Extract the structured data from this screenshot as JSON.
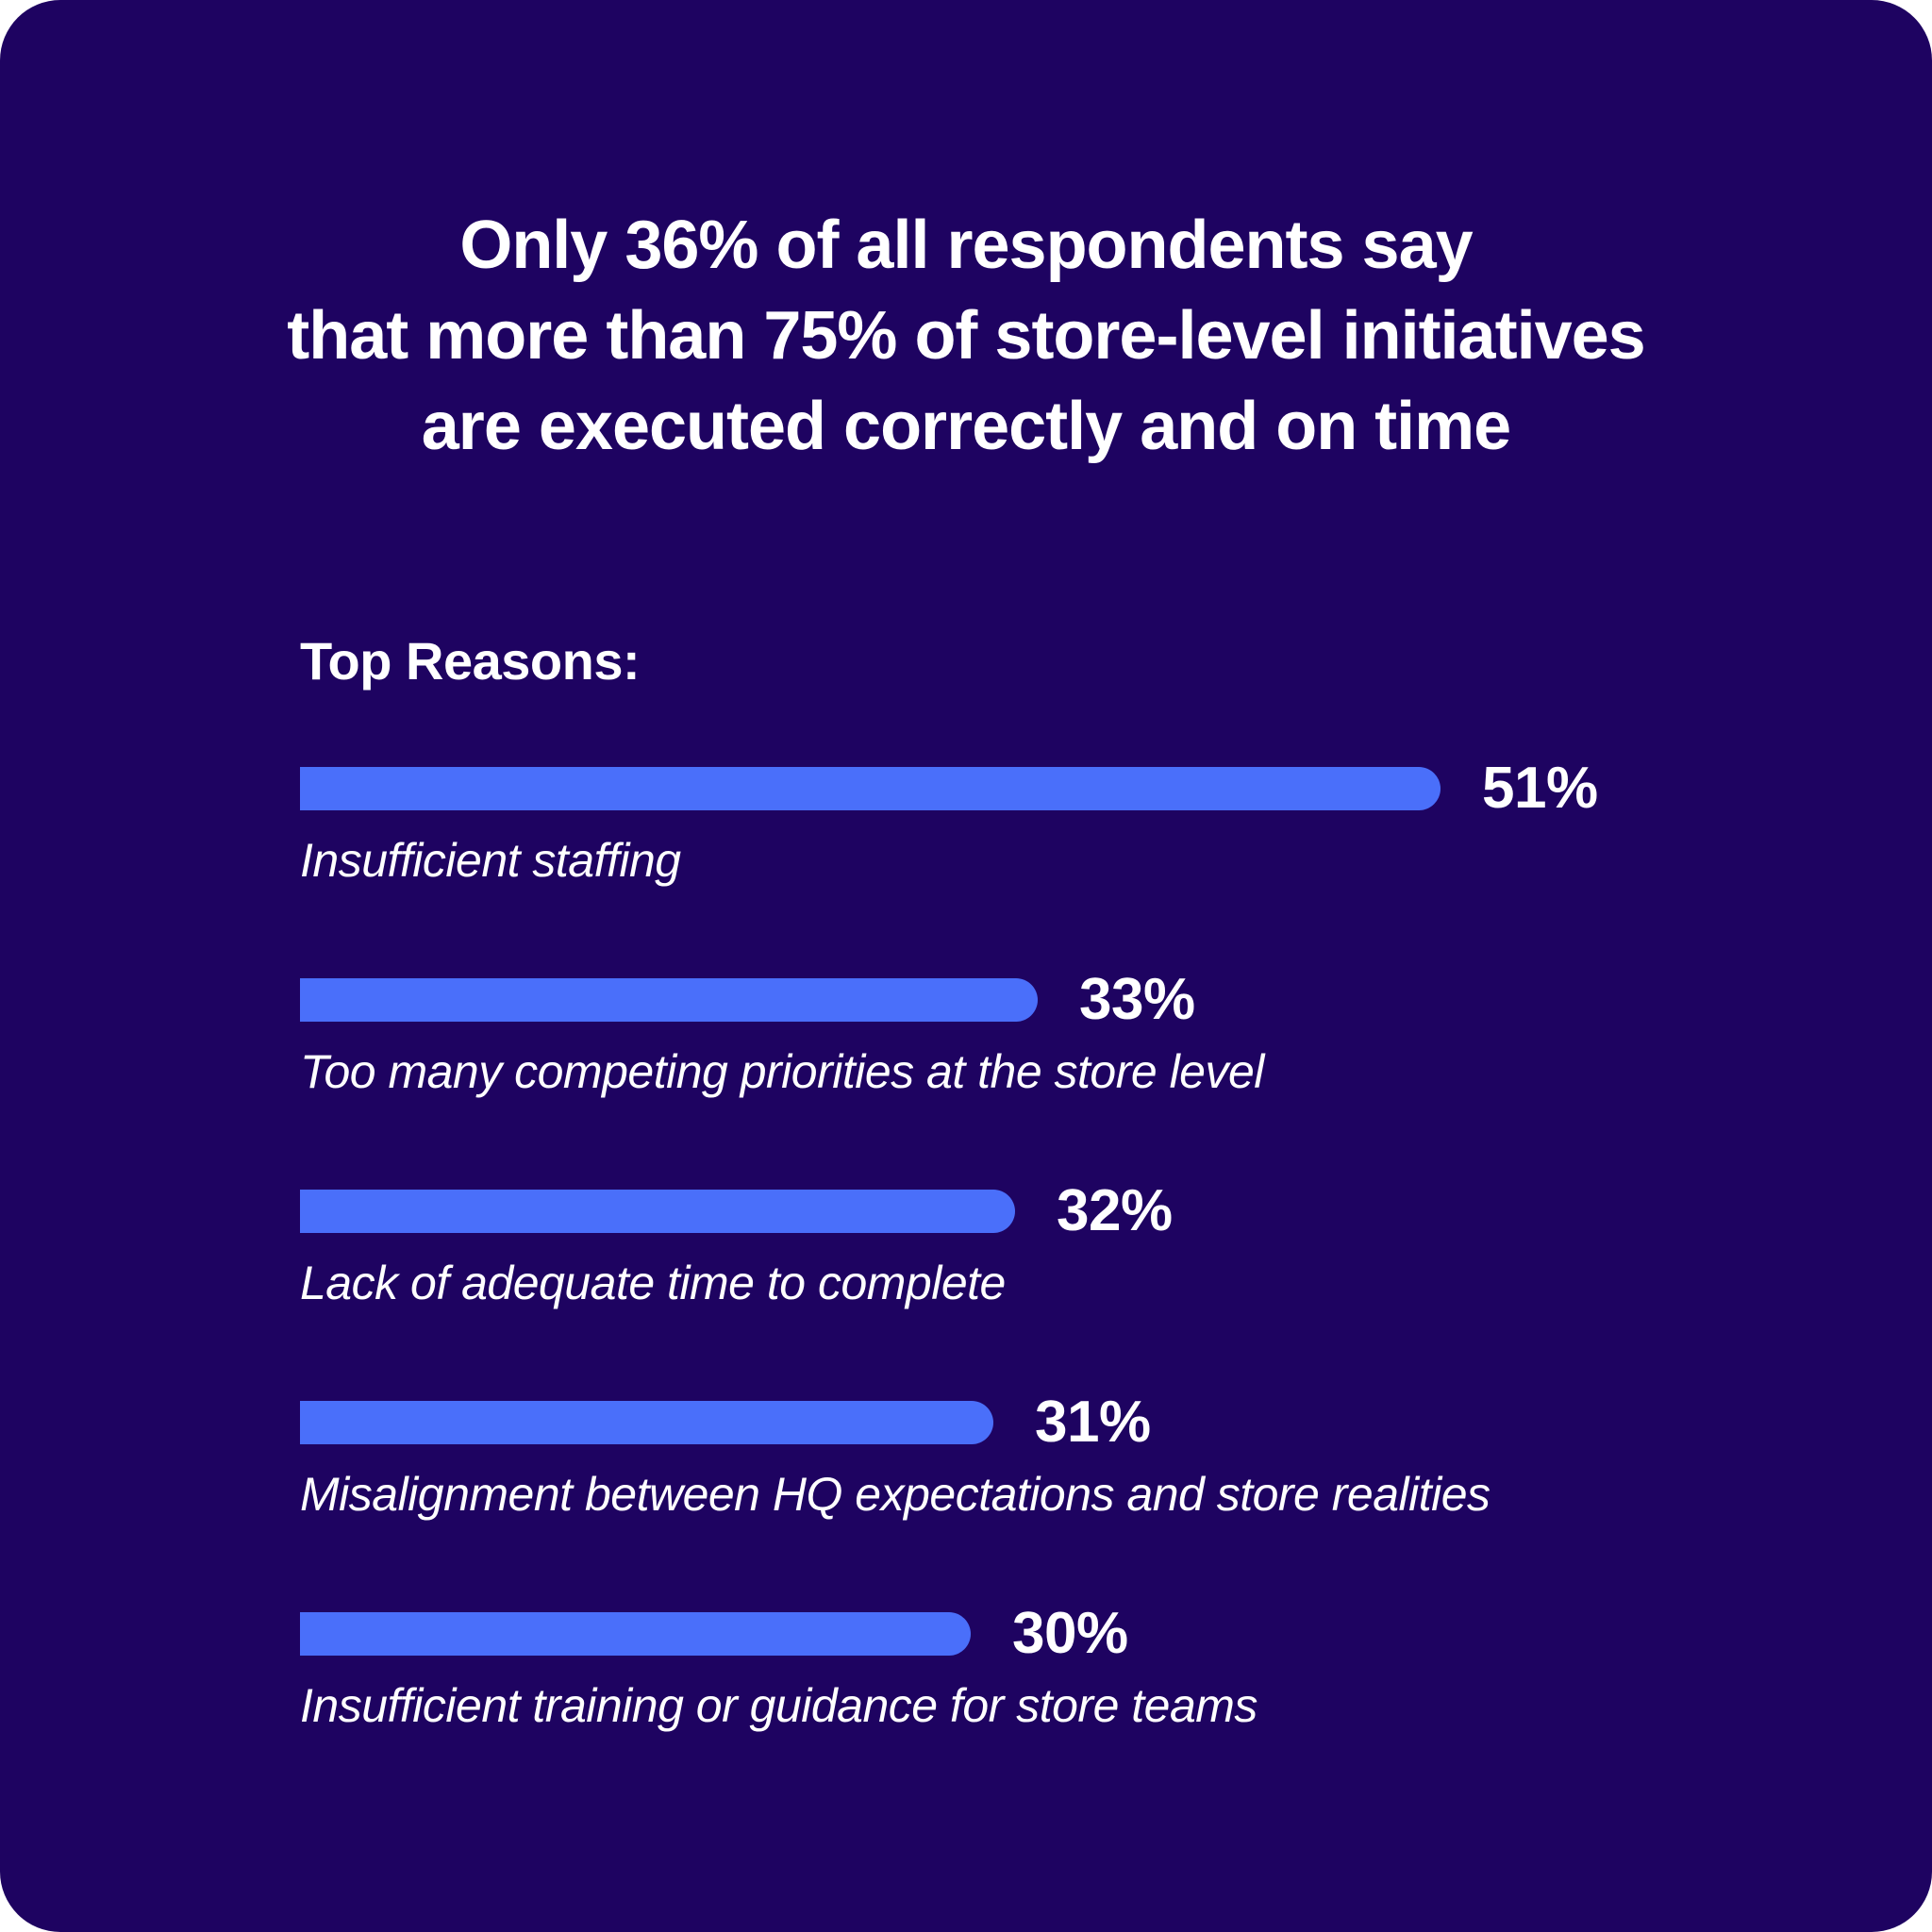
{
  "headline": {
    "lines": [
      "Only 36% of all respondents say",
      "that more than 75% of store-level initiatives",
      "are executed correctly and on time"
    ]
  },
  "section": {
    "heading": "Top Reasons:"
  },
  "chart_data": {
    "type": "bar",
    "orientation": "horizontal",
    "title": "Only 36% of all respondents say that more than 75% of store-level initiatives are executed correctly and on time",
    "section_label": "Top Reasons:",
    "categories": [
      "Insufficient staffing",
      "Too many competing priorities at the store level",
      "Lack of adequate time to complete",
      "Misalignment between HQ expectations and store realities",
      "Insufficient training or guidance for store teams"
    ],
    "values": [
      51,
      33,
      32,
      31,
      30
    ],
    "value_labels": [
      "51%",
      "33%",
      "32%",
      "31%",
      "30%"
    ],
    "unit": "%",
    "xlim": [
      0,
      51
    ],
    "grid": false,
    "legend": "none",
    "value_label_position": "right-of-bar",
    "category_label_position": "below-bar",
    "bar_color": "#4a6ffa",
    "background_color": "#1e0361",
    "text_color": "#ffffff"
  }
}
